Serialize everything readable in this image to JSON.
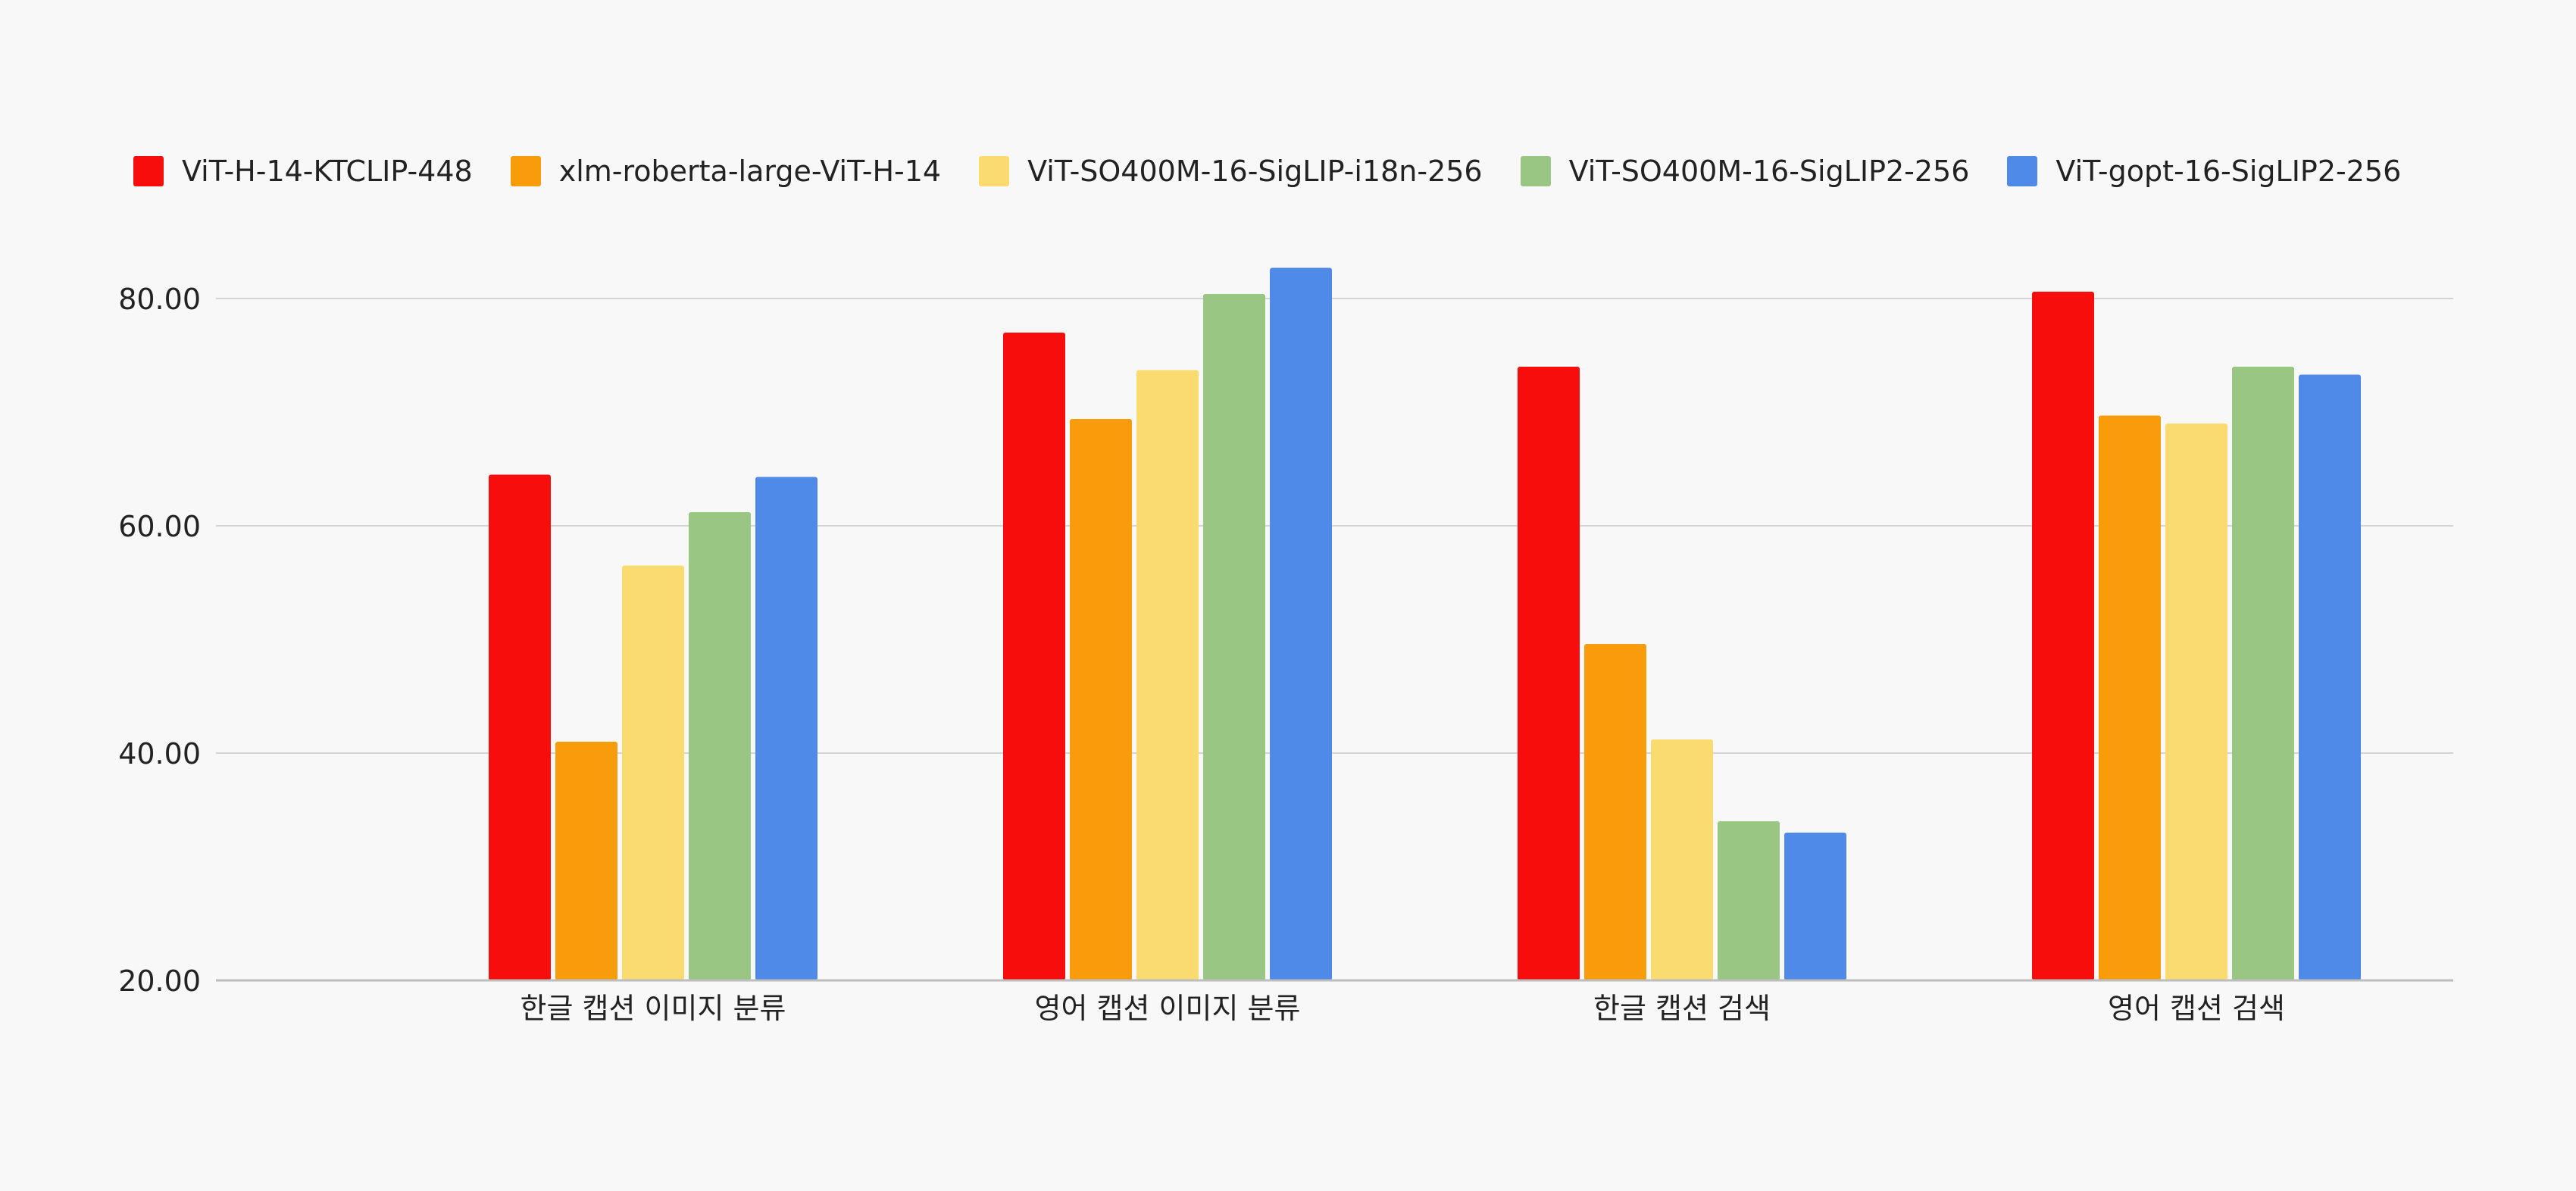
{
  "chart_data": {
    "type": "bar",
    "categories": [
      "한글 캡션 이미지 분류",
      "영어 캡션 이미지 분류",
      "한글 캡션 검색",
      "영어 캡션 검색"
    ],
    "series": [
      {
        "name": "ViT-H-14-KTCLIP-448",
        "color": "#f80d0d",
        "values": [
          64.5,
          77.0,
          74.0,
          80.6
        ]
      },
      {
        "name": "xlm-roberta-large-ViT-H-14",
        "color": "#f99c0c",
        "values": [
          41.0,
          69.4,
          49.6,
          69.7
        ]
      },
      {
        "name": "ViT-SO400M-16-SigLIP-i18n-256",
        "color": "#f9db70",
        "values": [
          56.5,
          73.7,
          41.2,
          69.0
        ]
      },
      {
        "name": "ViT-SO400M-16-SigLIP2-256",
        "color": "#99c683",
        "values": [
          61.2,
          80.4,
          34.0,
          74.0
        ]
      },
      {
        "name": "ViT-gopt-16-SigLIP2-256",
        "color": "#4f8ae9",
        "values": [
          64.3,
          82.7,
          33.0,
          73.3
        ]
      }
    ],
    "ylim": [
      20,
      85
    ],
    "yticks": [
      "20.00",
      "40.00",
      "60.00",
      "80.00"
    ],
    "ytick_values": [
      20,
      40,
      60,
      80
    ],
    "grid": true,
    "legend_position": "top"
  }
}
